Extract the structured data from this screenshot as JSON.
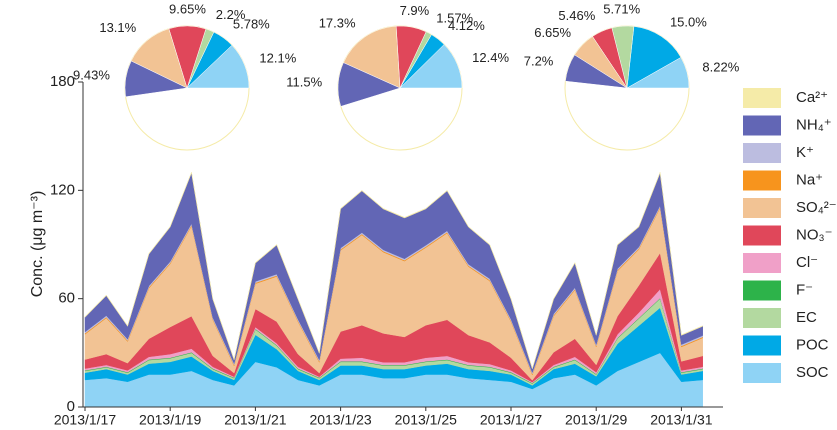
{
  "chart_data": [
    {
      "type": "stacked_area",
      "y_label": "Conc. (μg m⁻³)",
      "ylim": [
        0,
        180
      ],
      "yticks": [
        0,
        60,
        120,
        180
      ],
      "categories": [
        "2013/1/17",
        null,
        null,
        null,
        "2013/1/19",
        null,
        null,
        null,
        "2013/1/21",
        null,
        null,
        null,
        "2013/1/23",
        null,
        null,
        null,
        "2013/1/25",
        null,
        null,
        null,
        "2013/1/27",
        null,
        null,
        null,
        "2013/1/29",
        null,
        null,
        null,
        "2013/1/31",
        null
      ],
      "series": [
        {
          "name": "SOC",
          "color": "#8fd3f5",
          "values": [
            15,
            16,
            14,
            18,
            18,
            20,
            15,
            12,
            25,
            22,
            15,
            12,
            18,
            18,
            16,
            16,
            18,
            18,
            16,
            15,
            14,
            10,
            16,
            18,
            12,
            20,
            25,
            30,
            14,
            15
          ]
        },
        {
          "name": "POC",
          "color": "#00a9e6",
          "values": [
            4,
            5,
            4,
            6,
            7,
            8,
            5,
            3,
            15,
            10,
            5,
            3,
            5,
            5,
            5,
            5,
            5,
            6,
            5,
            5,
            4,
            2,
            5,
            6,
            5,
            15,
            20,
            25,
            4,
            5
          ]
        },
        {
          "name": "EC",
          "color": "#b3d9a0",
          "values": [
            1,
            1,
            1,
            2,
            2,
            2,
            1,
            1,
            3,
            2,
            1,
            1,
            2,
            2,
            2,
            2,
            2,
            2,
            2,
            2,
            1,
            1,
            1,
            2,
            1,
            3,
            4,
            5,
            1,
            1
          ]
        },
        {
          "name": "F⁻",
          "color": "#2db34a",
          "values": [
            0.3,
            0.3,
            0.3,
            0.3,
            0.3,
            0.3,
            0.3,
            0.3,
            0.3,
            0.3,
            0.3,
            0.3,
            0.3,
            0.3,
            0.3,
            0.3,
            0.3,
            0.3,
            0.3,
            0.3,
            0.3,
            0.3,
            0.3,
            0.3,
            0.3,
            0.3,
            0.3,
            0.3,
            0.3,
            0.3
          ]
        },
        {
          "name": "Cl⁻",
          "color": "#f0a0c8",
          "values": [
            1,
            1,
            1,
            1.5,
            2,
            2,
            1,
            0.5,
            1,
            1,
            1,
            0.5,
            1.5,
            2,
            1.5,
            1.5,
            2,
            2,
            1.5,
            1.5,
            1,
            0.5,
            1,
            1.5,
            1,
            2,
            3,
            5,
            1,
            1
          ]
        },
        {
          "name": "NO₃⁻",
          "color": "#e0475a",
          "values": [
            5,
            6,
            4,
            10,
            15,
            18,
            6,
            2,
            10,
            12,
            7,
            2,
            15,
            18,
            16,
            14,
            18,
            20,
            15,
            12,
            7,
            1,
            7,
            10,
            4,
            10,
            15,
            20,
            5,
            6
          ]
        },
        {
          "name": "SO₄²⁻",
          "color": "#f2c394",
          "values": [
            14,
            20,
            12,
            28,
            35,
            50,
            20,
            4,
            14,
            25,
            18,
            6,
            45,
            50,
            45,
            42,
            43,
            48,
            38,
            34,
            20,
            3,
            20,
            27,
            10,
            25,
            20,
            25,
            8,
            10
          ]
        },
        {
          "name": "Na⁺",
          "color": "#f7941d",
          "values": [
            0.5,
            0.5,
            0.5,
            0.5,
            0.5,
            0.5,
            0.5,
            0.5,
            0.5,
            0.5,
            0.5,
            0.5,
            0.5,
            0.5,
            0.5,
            0.5,
            0.5,
            0.5,
            0.5,
            0.5,
            0.5,
            0.5,
            0.5,
            0.5,
            0.5,
            0.5,
            0.5,
            0.5,
            0.5,
            0.5
          ]
        },
        {
          "name": "K⁺",
          "color": "#bcbde0",
          "values": [
            0.8,
            0.8,
            0.8,
            0.8,
            0.8,
            0.8,
            0.8,
            0.8,
            0.8,
            0.8,
            0.8,
            0.8,
            0.8,
            0.8,
            0.8,
            0.8,
            0.8,
            0.8,
            0.8,
            0.8,
            0.8,
            0.8,
            0.8,
            0.8,
            0.8,
            0.8,
            0.8,
            0.8,
            0.8,
            0.8
          ]
        },
        {
          "name": "NH₄⁺",
          "color": "#6266b5",
          "values": [
            8.1,
            11.1,
            7.1,
            17.6,
            19.1,
            28.1,
            10.1,
            2,
            10.1,
            16.1,
            11.1,
            3.6,
            21.6,
            23.1,
            22.6,
            22.6,
            20.1,
            22.1,
            20.6,
            18.6,
            11.1,
            2,
            8.1,
            13.6,
            5.1,
            13.1,
            11.1,
            18.1,
            5.1,
            5.1
          ]
        },
        {
          "name": "Ca²⁺",
          "color": "#f5eba8",
          "values": [
            0.3,
            0.3,
            0.3,
            0.3,
            0.3,
            0.3,
            0.3,
            0.3,
            0.3,
            0.3,
            0.3,
            0.3,
            0.3,
            0.3,
            0.3,
            0.3,
            0.3,
            0.3,
            0.3,
            0.3,
            0.3,
            0.3,
            0.3,
            0.3,
            0.3,
            0.3,
            0.3,
            0.3,
            0.3,
            0.3
          ]
        }
      ]
    },
    {
      "type": "pie",
      "values": [
        12.1,
        5.78,
        2.2,
        9.65,
        13.1,
        9.43
      ],
      "value_labels": [
        "12.1%",
        "5.78%",
        "2.2%",
        "9.65%",
        "13.1%",
        "9.43%"
      ],
      "colors": [
        "#8fd3f5",
        "#00a9e6",
        "#b3d9a0",
        "#e0475a",
        "#f2c394",
        "#6266b5"
      ]
    },
    {
      "type": "pie",
      "values": [
        12.4,
        4.12,
        1.57,
        7.9,
        17.3,
        11.5
      ],
      "value_labels": [
        "12.4%",
        "4.12%",
        "1.57%",
        "7.9%",
        "17.3%",
        "11.5%"
      ],
      "colors": [
        "#8fd3f5",
        "#00a9e6",
        "#b3d9a0",
        "#e0475a",
        "#f2c394",
        "#6266b5"
      ]
    },
    {
      "type": "pie",
      "values": [
        8.22,
        15.0,
        5.71,
        5.46,
        6.65,
        7.2
      ],
      "value_labels": [
        "8.22%",
        "15.0%",
        "5.71%",
        "5.46%",
        "6.65%",
        "7.2%"
      ],
      "colors": [
        "#8fd3f5",
        "#00a9e6",
        "#b3d9a0",
        "#e0475a",
        "#f2c394",
        "#6266b5"
      ]
    }
  ]
}
